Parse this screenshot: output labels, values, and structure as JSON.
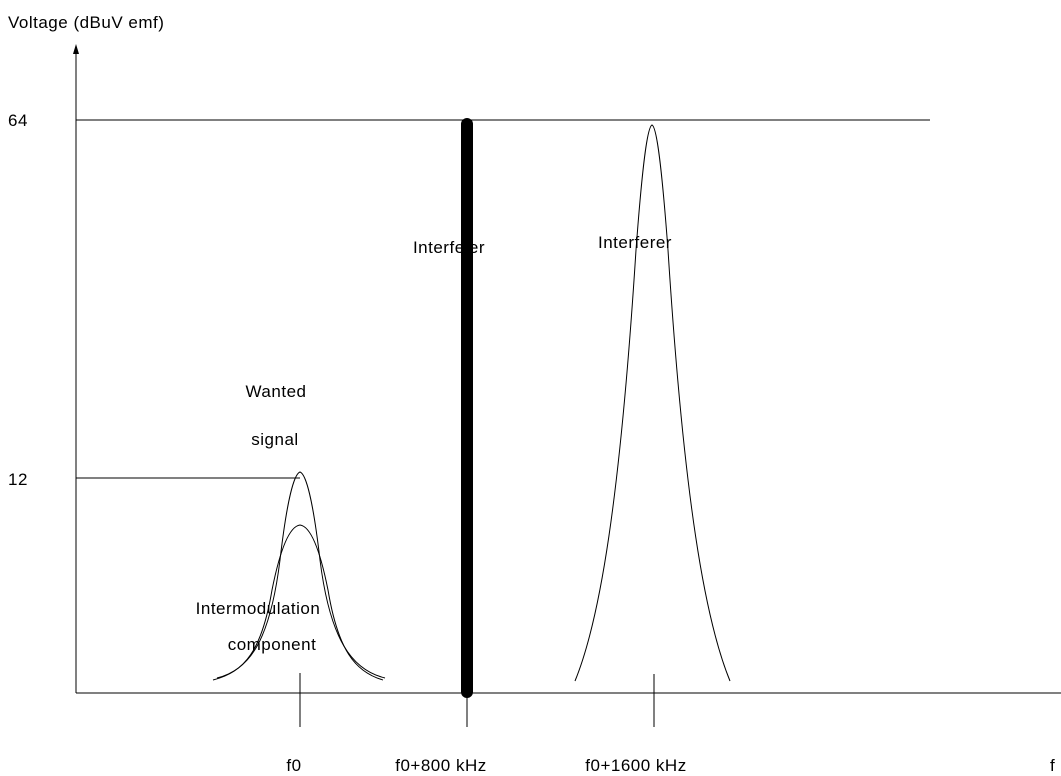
{
  "labels": {
    "y_axis": "Voltage (dBuV emf)",
    "x_axis": "f",
    "level_high": "64",
    "level_low": "12",
    "wanted_line1": "Wanted",
    "wanted_line2": "signal",
    "intermod_line1": "Intermodulation",
    "intermod_line2": "component",
    "interferer_bar": "Interfeler",
    "interferer_peak": "Interferer",
    "freq_f0": "f0",
    "freq_800": "f0+800 kHz",
    "freq_1600": "f0+1600 kHz"
  }
}
